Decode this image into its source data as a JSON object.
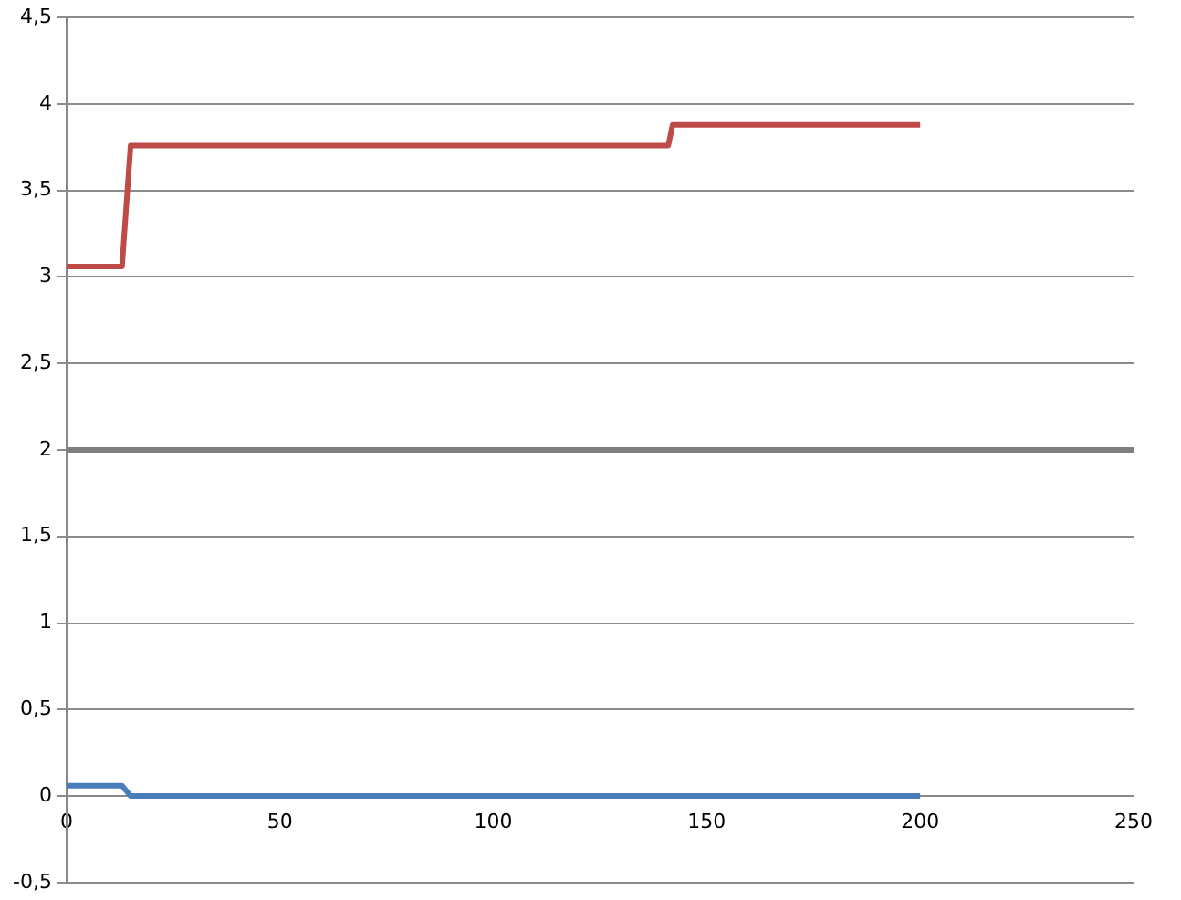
{
  "chart_data": {
    "type": "line",
    "xlim": [
      0,
      250
    ],
    "xticks": [
      0,
      50,
      100,
      150,
      200,
      250
    ],
    "ylim": [
      -0.5,
      4.5
    ],
    "yticks": [
      {
        "value": -0.5,
        "label": "-0,5"
      },
      0,
      {
        "value": 0.5,
        "label": "0,5"
      },
      1,
      {
        "value": 1.5,
        "label": "1,5"
      },
      2,
      {
        "value": 2.5,
        "label": "2,5"
      },
      3,
      {
        "value": 3.5,
        "label": "3,5"
      },
      4,
      {
        "value": 4.5,
        "label": "4,5"
      }
    ],
    "grid": "y",
    "legend": false,
    "marker": "none",
    "line_style": "solid",
    "series": [
      {
        "color": "#be4b48",
        "x": [
          0,
          13,
          15,
          141,
          142,
          200
        ],
        "values": [
          3.06,
          3.06,
          3.76,
          3.76,
          3.88,
          3.88
        ]
      },
      {
        "color": "#4a7ebb",
        "x": [
          0,
          13,
          15,
          200
        ],
        "values": [
          0.06,
          0.06,
          0,
          0
        ]
      }
    ],
    "ref_lines": [
      {
        "axis": "y",
        "value": 2,
        "color": "#7f7f7f"
      }
    ]
  }
}
